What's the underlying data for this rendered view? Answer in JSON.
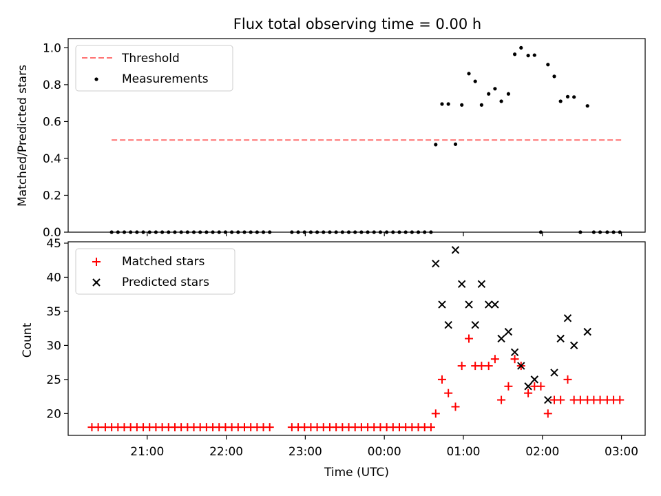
{
  "figure": {
    "title": "Flux total observing time = 0.00 h"
  },
  "chart_data": [
    {
      "type": "scatter",
      "ylabel": "Matched/Predicted stars",
      "xlabel": "",
      "ylim": [
        0,
        1.05
      ],
      "yticks": [
        0.0,
        0.2,
        0.4,
        0.6,
        0.8,
        1.0
      ],
      "ytick_labels": [
        "0.0",
        "0.2",
        "0.4",
        "0.6",
        "0.8",
        "1.0"
      ],
      "legend_position": "top-left",
      "grid": false,
      "threshold": {
        "name": "Threshold",
        "value": 0.5,
        "x_start_h": 20.55,
        "x_end_h": 27.0,
        "color": "#ff7070",
        "style": "dashed"
      },
      "series": [
        {
          "name": "Measurements",
          "marker": "dot",
          "color": "#000000",
          "x_hours": [
            20.55,
            20.63,
            20.71,
            20.79,
            20.87,
            20.95,
            21.03,
            21.11,
            21.19,
            21.27,
            21.35,
            21.43,
            21.51,
            21.59,
            21.67,
            21.75,
            21.83,
            21.91,
            21.99,
            22.07,
            22.15,
            22.23,
            22.31,
            22.39,
            22.47,
            22.55,
            22.83,
            22.91,
            22.99,
            23.07,
            23.15,
            23.23,
            23.31,
            23.39,
            23.47,
            23.55,
            23.63,
            23.71,
            23.79,
            23.87,
            23.95,
            24.03,
            24.11,
            24.19,
            24.27,
            24.35,
            24.43,
            24.51,
            24.59,
            24.65,
            24.73,
            24.81,
            24.9,
            24.98,
            25.07,
            25.15,
            25.23,
            25.32,
            25.4,
            25.48,
            25.57,
            25.65,
            25.73,
            25.82,
            25.9,
            25.98,
            26.07,
            26.15,
            26.23,
            26.32,
            26.4,
            26.48,
            26.57,
            26.65,
            26.73,
            26.82,
            26.9,
            26.98
          ],
          "y": [
            0,
            0,
            0,
            0,
            0,
            0,
            0,
            0,
            0,
            0,
            0,
            0,
            0,
            0,
            0,
            0,
            0,
            0,
            0,
            0,
            0,
            0,
            0,
            0,
            0,
            0,
            0,
            0,
            0,
            0,
            0,
            0,
            0,
            0,
            0,
            0,
            0,
            0,
            0,
            0,
            0,
            0,
            0,
            0,
            0,
            0,
            0,
            0,
            0,
            0.475,
            0.695,
            0.695,
            0.477,
            0.69,
            0.86,
            0.818,
            0.69,
            0.75,
            0.778,
            0.71,
            0.75,
            0.965,
            1.0,
            0.958,
            0.96,
            0,
            0.909,
            0.845,
            0.71,
            0.735,
            0.733,
            0,
            0.685,
            0,
            0,
            0,
            0,
            0
          ]
        }
      ]
    },
    {
      "type": "scatter",
      "ylabel": "Count",
      "xlabel": "Time (UTC)",
      "ylim": [
        16.8,
        45.2
      ],
      "yticks": [
        20,
        25,
        30,
        35,
        40,
        45
      ],
      "ytick_labels": [
        "20",
        "25",
        "30",
        "35",
        "40",
        "45"
      ],
      "xlim_hours": [
        20.0,
        27.3
      ],
      "xticks_hours": [
        21,
        22,
        23,
        24,
        25,
        26,
        27
      ],
      "xtick_labels": [
        "21:00",
        "22:00",
        "23:00",
        "00:00",
        "01:00",
        "02:00",
        "03:00"
      ],
      "legend_position": "top-left",
      "grid": false,
      "series": [
        {
          "name": "Matched stars",
          "marker": "plus",
          "color": "#ff0000",
          "x_hours": [
            20.3,
            20.38,
            20.47,
            20.55,
            20.63,
            20.71,
            20.79,
            20.87,
            20.95,
            21.03,
            21.11,
            21.19,
            21.27,
            21.35,
            21.43,
            21.51,
            21.59,
            21.67,
            21.75,
            21.83,
            21.91,
            21.99,
            22.07,
            22.15,
            22.23,
            22.31,
            22.39,
            22.47,
            22.55,
            22.83,
            22.91,
            22.99,
            23.07,
            23.15,
            23.23,
            23.31,
            23.39,
            23.47,
            23.55,
            23.63,
            23.71,
            23.79,
            23.87,
            23.95,
            24.03,
            24.11,
            24.19,
            24.27,
            24.35,
            24.43,
            24.51,
            24.59,
            24.65,
            24.73,
            24.81,
            24.9,
            24.98,
            25.07,
            25.15,
            25.23,
            25.32,
            25.4,
            25.48,
            25.57,
            25.65,
            25.73,
            25.82,
            25.9,
            25.98,
            26.07,
            26.15,
            26.23,
            26.32,
            26.4,
            26.48,
            26.57,
            26.65,
            26.73,
            26.82,
            26.9,
            26.98
          ],
          "y": [
            18,
            18,
            18,
            18,
            18,
            18,
            18,
            18,
            18,
            18,
            18,
            18,
            18,
            18,
            18,
            18,
            18,
            18,
            18,
            18,
            18,
            18,
            18,
            18,
            18,
            18,
            18,
            18,
            18,
            18,
            18,
            18,
            18,
            18,
            18,
            18,
            18,
            18,
            18,
            18,
            18,
            18,
            18,
            18,
            18,
            18,
            18,
            18,
            18,
            18,
            18,
            18,
            20,
            25,
            23,
            21,
            27,
            31,
            27,
            27,
            27,
            28,
            22,
            24,
            28,
            27,
            23,
            24,
            24,
            20,
            22,
            22,
            25,
            22,
            22,
            22,
            22,
            22,
            22,
            22,
            22
          ]
        },
        {
          "name": "Predicted stars",
          "marker": "x",
          "color": "#000000",
          "x_hours": [
            24.65,
            24.73,
            24.81,
            24.9,
            24.98,
            25.07,
            25.15,
            25.23,
            25.32,
            25.4,
            25.48,
            25.57,
            25.65,
            25.73,
            25.82,
            25.9,
            26.07,
            26.15,
            26.23,
            26.32,
            26.4,
            26.57
          ],
          "y": [
            42,
            36,
            33,
            44,
            39,
            36,
            33,
            39,
            36,
            36,
            31,
            32,
            29,
            27,
            24,
            25,
            22,
            26,
            31,
            34,
            30,
            32
          ]
        }
      ]
    }
  ]
}
